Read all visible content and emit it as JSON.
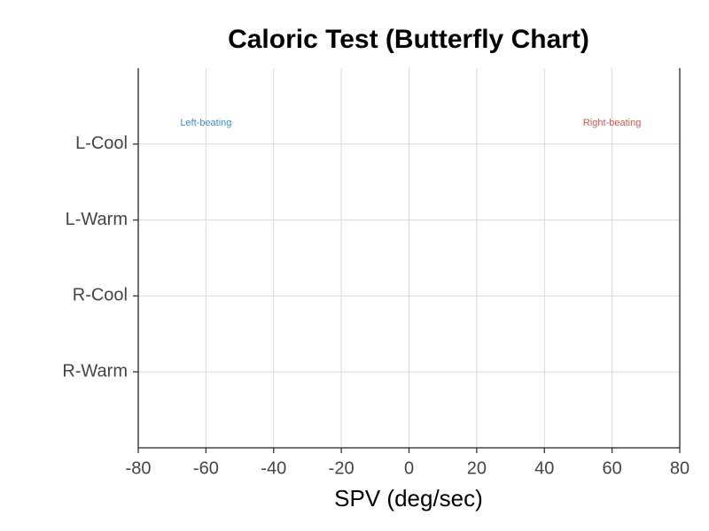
{
  "chart_data": {
    "type": "bar",
    "title": "Caloric Test (Butterfly Chart)",
    "x_label": "SPV (deg/sec)",
    "categories": [
      "L-Cool",
      "L-Warm",
      "R-Cool",
      "R-Warm"
    ],
    "annotations": [
      {
        "text": "Left-beating",
        "color": "#3b8fc9"
      },
      {
        "text": "Right-beating",
        "color": "#d9534f"
      }
    ],
    "xlim": [
      -80,
      80
    ],
    "xticks": [
      -80,
      -60,
      -40,
      -20,
      0,
      20,
      40,
      60,
      80
    ],
    "grid": true
  }
}
